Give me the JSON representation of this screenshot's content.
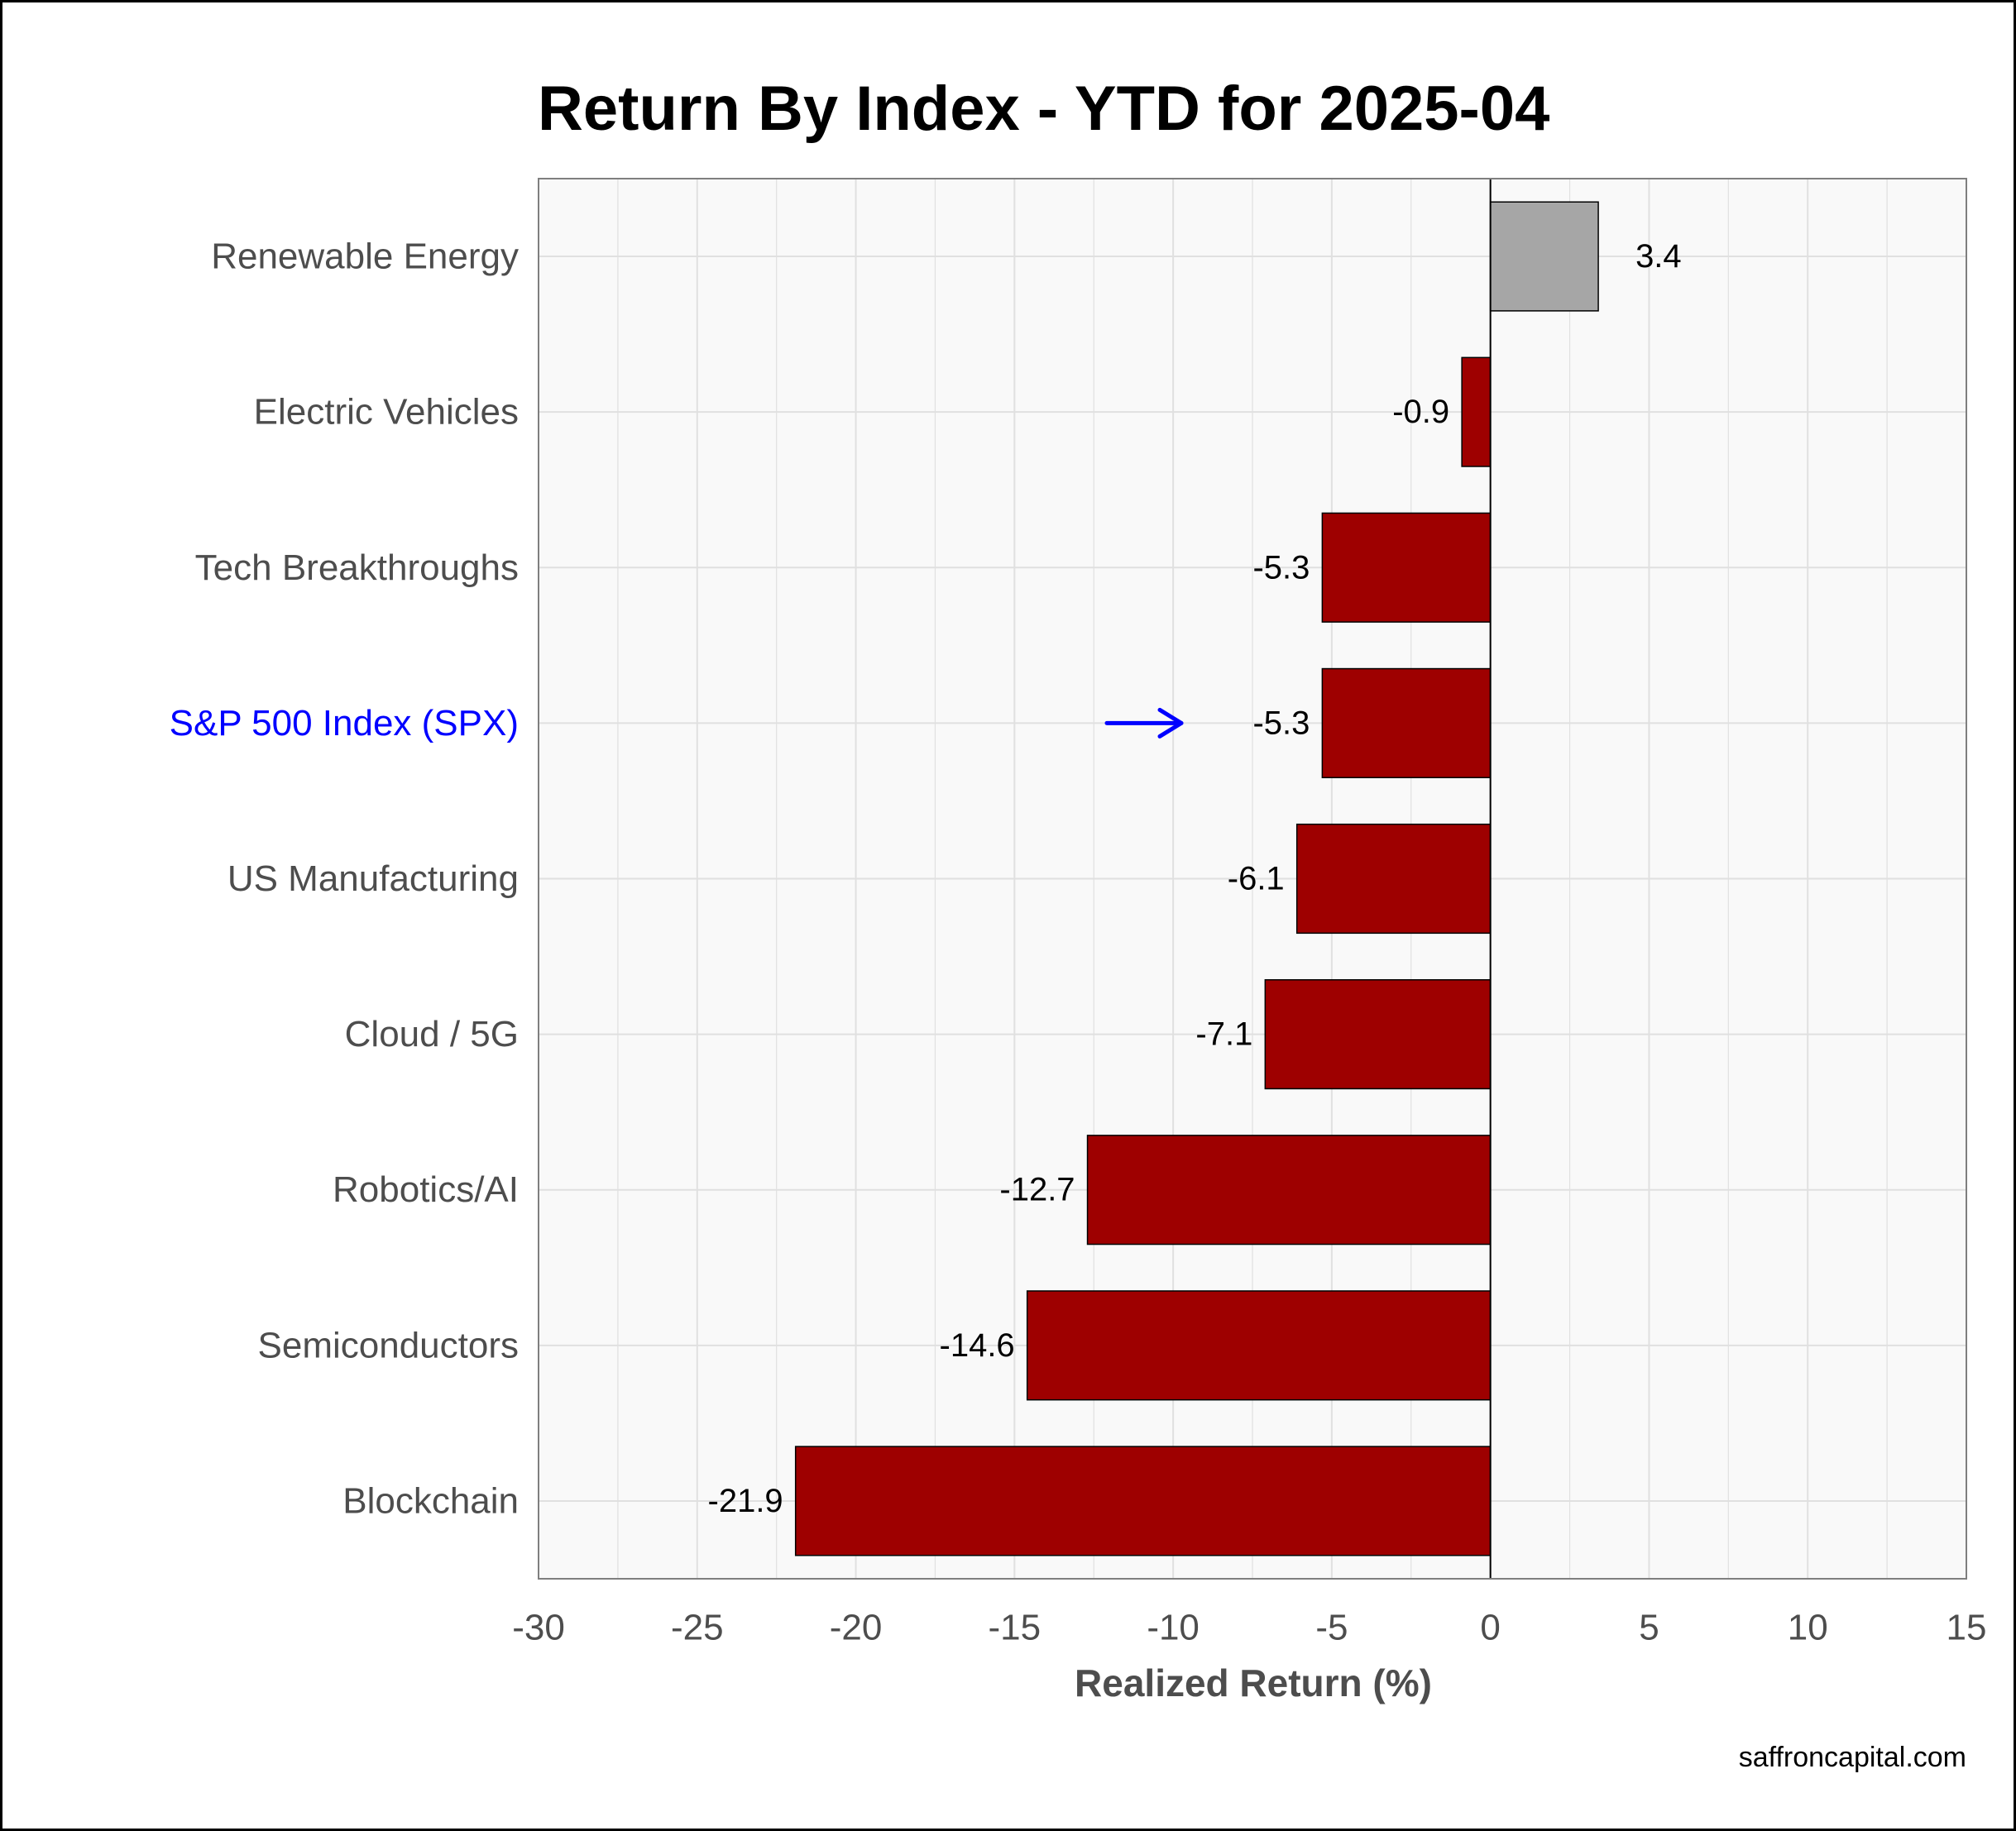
{
  "chart_data": {
    "type": "bar",
    "orientation": "horizontal",
    "title": "Return By Index - YTD for 2025-04",
    "xlabel": "Realized Return (%)",
    "ylabel": "",
    "xlim": [
      -30,
      15
    ],
    "xticks": [
      "-30",
      "-25",
      "-20",
      "-15",
      "-10",
      "-5",
      "0",
      "5",
      "10",
      "15"
    ],
    "xtick_values": [
      -30,
      -25,
      -20,
      -15,
      -10,
      -5,
      0,
      5,
      10,
      15
    ],
    "grid": true,
    "categories": [
      "Renewable Energy",
      "Electric Vehicles",
      "Tech Breakthroughs",
      "S&P 500 Index (SPX)",
      "US Manufacturing",
      "Cloud / 5G",
      "Robotics/AI",
      "Semiconductors",
      "Blockchain"
    ],
    "values": [
      3.4,
      -0.9,
      -5.3,
      -5.3,
      -6.1,
      -7.1,
      -12.7,
      -14.6,
      -21.9
    ],
    "labels": [
      "3.4",
      "-0.9",
      "-5.3",
      "-5.3",
      "-6.1",
      "-7.1",
      "-12.7",
      "-14.6",
      "-21.9"
    ],
    "highlight": {
      "category": "S&P 500 Index (SPX)",
      "label_color": "#0000ff",
      "marker": "arrow"
    },
    "colors": {
      "positive": "#a6a6a6",
      "negative": "#9e0000",
      "highlight_text": "#0000ff",
      "panel_background": "#f9f9f9",
      "grid": "#e0e0e0"
    }
  },
  "footer": {
    "source": "saffroncapital.com"
  }
}
